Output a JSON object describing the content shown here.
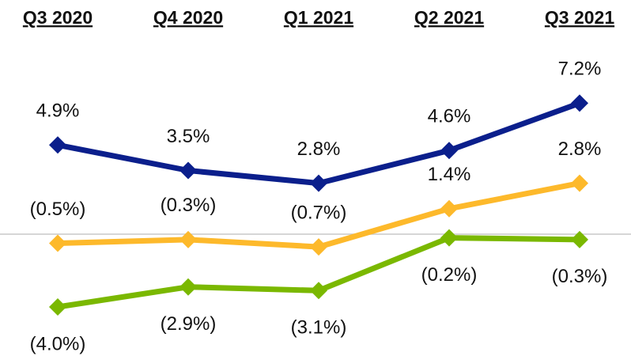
{
  "chart_data": {
    "type": "line",
    "categories": [
      "Q3 2020",
      "Q4 2020",
      "Q1 2021",
      "Q2 2021",
      "Q3 2021"
    ],
    "series": [
      {
        "color": "#0b1f8c",
        "values": [
          4.9,
          3.5,
          2.8,
          4.6,
          7.2
        ],
        "value_labels": [
          "4.9%",
          "3.5%",
          "2.8%",
          "4.6%",
          "7.2%"
        ]
      },
      {
        "color": "#fdb92b",
        "values": [
          -0.5,
          -0.3,
          -0.7,
          1.4,
          2.8
        ],
        "value_labels": [
          "(0.5%)",
          "(0.3%)",
          "(0.7%)",
          "1.4%",
          "2.8%"
        ]
      },
      {
        "color": "#7ab800",
        "values": [
          -4.0,
          -2.9,
          -3.1,
          -0.2,
          -0.3
        ],
        "value_labels": [
          "(4.0%)",
          "(2.9%)",
          "(3.1%)",
          "(0.2%)",
          "(0.3%)"
        ]
      }
    ],
    "ylim": [
      -5,
      10
    ]
  }
}
